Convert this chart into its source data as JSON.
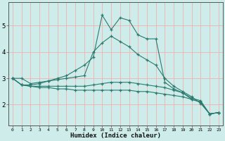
{
  "xlabel": "Humidex (Indice chaleur)",
  "x": [
    0,
    1,
    2,
    3,
    4,
    5,
    6,
    7,
    8,
    9,
    10,
    11,
    12,
    13,
    14,
    15,
    16,
    17,
    18,
    19,
    20,
    21,
    22,
    23
  ],
  "lines": [
    [
      3.0,
      3.0,
      2.8,
      2.85,
      2.9,
      3.0,
      3.1,
      3.3,
      3.5,
      3.8,
      5.4,
      4.85,
      5.3,
      5.2,
      4.65,
      4.5,
      4.5,
      2.85,
      2.6,
      2.45,
      2.2,
      2.1,
      1.65,
      1.7
    ],
    [
      3.0,
      2.75,
      2.75,
      2.8,
      2.9,
      2.95,
      3.0,
      3.05,
      3.1,
      4.0,
      4.35,
      4.6,
      4.4,
      4.2,
      3.9,
      3.7,
      3.5,
      3.0,
      2.7,
      2.5,
      2.3,
      2.05,
      1.65,
      1.7
    ],
    [
      3.0,
      2.75,
      2.7,
      2.7,
      2.7,
      2.7,
      2.7,
      2.7,
      2.7,
      2.75,
      2.8,
      2.85,
      2.85,
      2.85,
      2.8,
      2.75,
      2.7,
      2.65,
      2.55,
      2.45,
      2.25,
      2.15,
      1.65,
      1.7
    ],
    [
      3.0,
      2.75,
      2.7,
      2.65,
      2.65,
      2.6,
      2.6,
      2.55,
      2.55,
      2.55,
      2.55,
      2.55,
      2.55,
      2.55,
      2.5,
      2.5,
      2.45,
      2.4,
      2.35,
      2.3,
      2.2,
      2.1,
      1.65,
      1.7
    ]
  ],
  "line_color": "#2a7a6f",
  "bg_color": "#ceecea",
  "grid_color": "#f0b0b0",
  "ylim": [
    1.2,
    5.9
  ],
  "yticks": [
    2,
    3,
    4,
    5
  ],
  "xlim": [
    -0.5,
    23.5
  ]
}
